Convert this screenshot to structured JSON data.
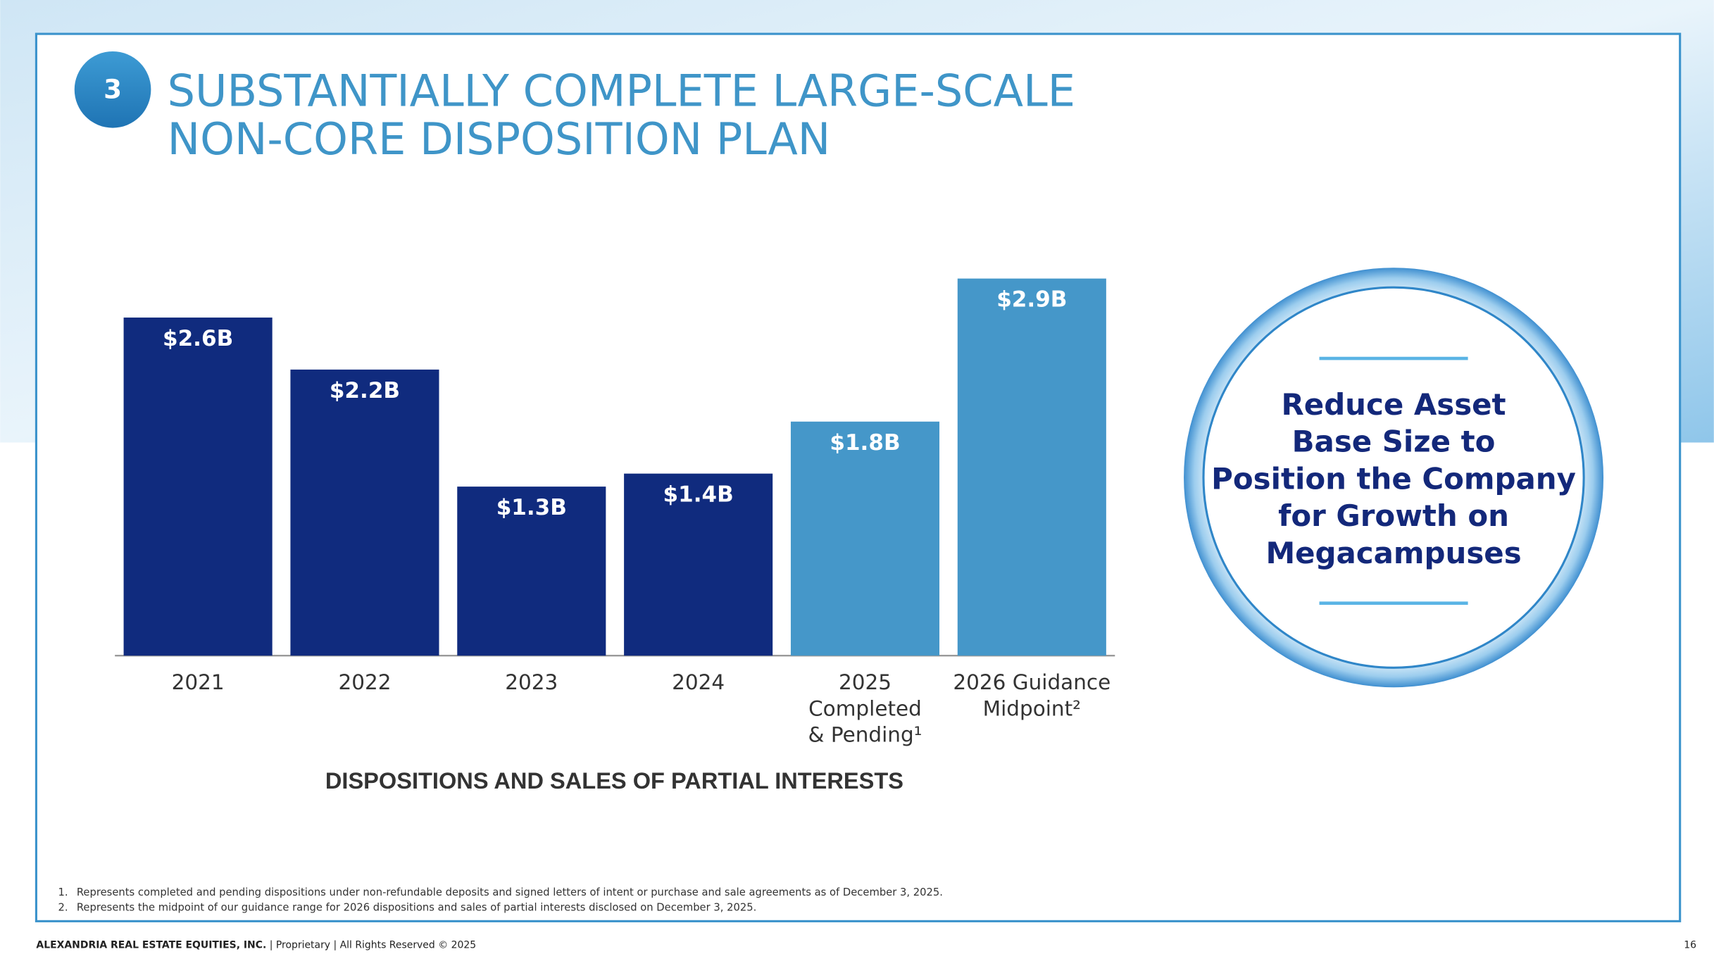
{
  "slide_number": "3",
  "title_lines": [
    "SUBSTANTIALLY COMPLETE LARGE-SCALE",
    "NON-CORE DISPOSITION PLAN"
  ],
  "chart_data": {
    "type": "bar",
    "categories": [
      "2021",
      "2022",
      "2023",
      "2024",
      "2025\nCompleted\n& Pending¹",
      "2026 Guidance\nMidpoint²"
    ],
    "values": [
      2.6,
      2.2,
      1.3,
      1.4,
      1.8,
      2.9
    ],
    "value_labels": [
      "$2.6B",
      "$2.2B",
      "$1.3B",
      "$1.4B",
      "$1.8B",
      "$2.9B"
    ],
    "colors": [
      "#102b7e",
      "#102b7e",
      "#102b7e",
      "#102b7e",
      "#4597c9",
      "#4597c9"
    ],
    "xlabel": "DISPOSITIONS AND SALES OF PARTIAL INTERESTS"
  },
  "callout_lines": [
    "Reduce Asset",
    "Base Size to",
    "Position the Company",
    "for Growth on",
    "Megacampuses"
  ],
  "footnotes": [
    {
      "number": "1.",
      "text": "Represents completed and pending dispositions under non-refundable deposits and signed letters of intent or purchase and sale agreements as of December 3, 2025."
    },
    {
      "number": "2.",
      "text": "Represents the midpoint of our guidance range for 2026 dispositions and sales of partial interests disclosed on December 3, 2025."
    }
  ],
  "footer": {
    "company": "ALEXANDRIA REAL ESTATE EQUITIES, INC.",
    "rights": " | Proprietary | All Rights Reserved © 2025"
  },
  "page_number": "16"
}
